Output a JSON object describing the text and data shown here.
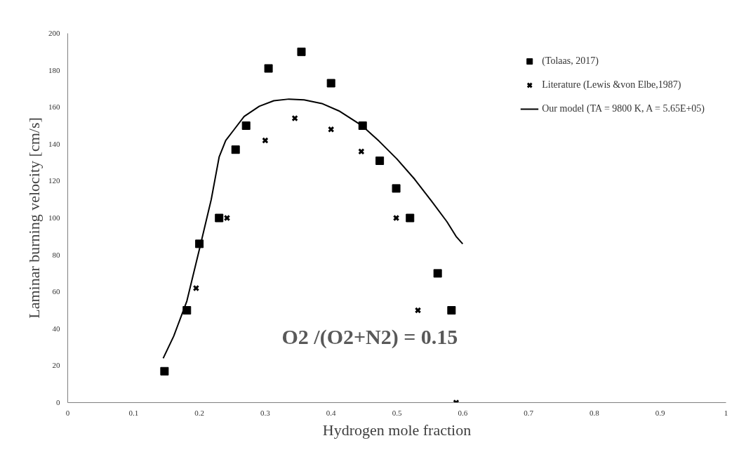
{
  "chart_data": {
    "type": "scatter",
    "xlabel": "Hydrogen mole fraction",
    "ylabel": "Laminar burning velocity [cm/s]",
    "xlim": [
      0,
      1
    ],
    "xticks": [
      0,
      0.1,
      0.2,
      0.3,
      0.4,
      0.5,
      0.6,
      0.7,
      0.8,
      0.9,
      1
    ],
    "ylim": [
      0,
      200
    ],
    "yticks": [
      0,
      20,
      40,
      60,
      80,
      100,
      120,
      140,
      160,
      180,
      200
    ],
    "grid": false,
    "legend": "top right",
    "annotations": [
      "O2 /(O2+N2) = 0.15"
    ],
    "series": [
      {
        "name": "(Tolaas, 2017)",
        "marker": "square",
        "color": "#000000",
        "x": [
          0.147,
          0.181,
          0.2,
          0.23,
          0.255,
          0.271,
          0.305,
          0.355,
          0.4,
          0.448,
          0.474,
          0.499,
          0.52,
          0.562,
          0.583
        ],
        "values": [
          17,
          50,
          86,
          100,
          137,
          150,
          181,
          190,
          173,
          150,
          131,
          116,
          100,
          70,
          50
        ]
      },
      {
        "name": "Literature (Lewis &von Elbe,1987)",
        "marker": "cross",
        "color": "#000000",
        "x": [
          0.195,
          0.242,
          0.3,
          0.345,
          0.4,
          0.446,
          0.499,
          0.532,
          0.59
        ],
        "values": [
          62,
          100,
          142,
          154,
          148,
          136,
          100,
          50,
          0
        ]
      },
      {
        "name": "Our model (TA = 9800 K, A = 5.65E+05)",
        "type": "line",
        "marker": "none",
        "line_style": "solid",
        "color": "#000000",
        "x": [
          0.145,
          0.161,
          0.181,
          0.2,
          0.218,
          0.23,
          0.24,
          0.253,
          0.268,
          0.291,
          0.313,
          0.336,
          0.359,
          0.386,
          0.412,
          0.447,
          0.473,
          0.5,
          0.527,
          0.553,
          0.576,
          0.59,
          0.6
        ],
        "values": [
          24,
          36,
          55,
          83,
          110,
          133,
          142,
          148,
          155,
          160.5,
          163.5,
          164.4,
          164,
          162,
          158,
          150,
          141.6,
          132,
          121,
          109,
          98,
          90,
          86
        ]
      }
    ]
  }
}
